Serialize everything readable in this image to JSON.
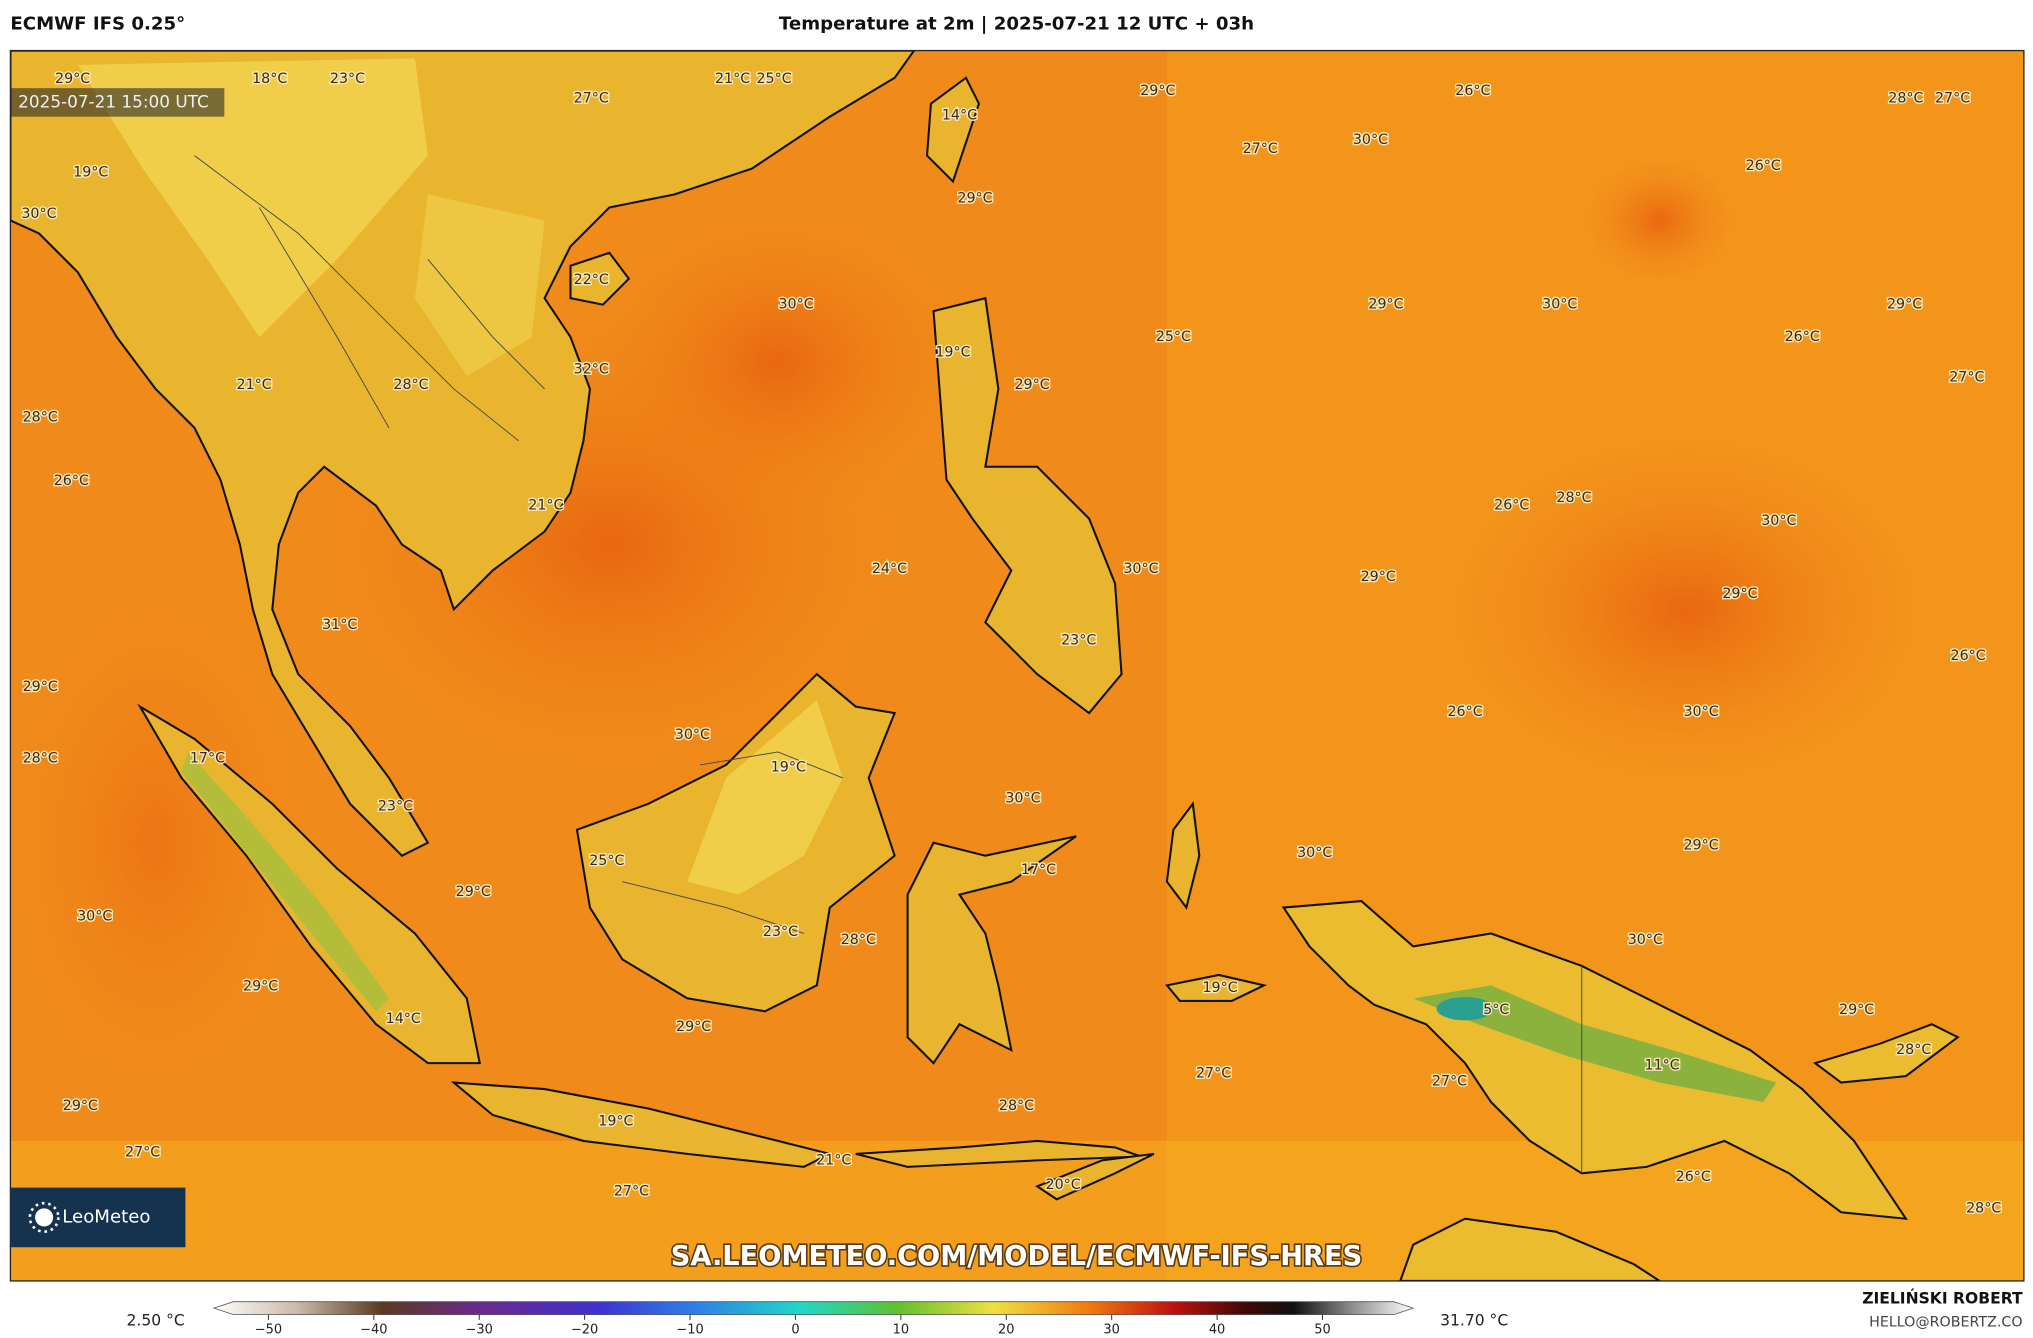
{
  "header": {
    "model": "ECMWF IFS 0.25°",
    "title": "Temperature at 2m | 2025-07-21 12 UTC + 03h"
  },
  "timestamp": "2025-07-21 15:00 UTC",
  "temperature_labels": [
    "29°C",
    "18°C",
    "23°C",
    "27°C",
    "21°C",
    "25°C",
    "19°C",
    "30°C",
    "14°C",
    "29°C",
    "26°C",
    "28°C",
    "27°C",
    "30°C",
    "27°C",
    "26°C",
    "29°C",
    "22°C",
    "30°C",
    "29°C",
    "30°C",
    "29°C",
    "25°C",
    "26°C",
    "19°C",
    "32°C",
    "27°C",
    "21°C",
    "28°C",
    "29°C",
    "28°C",
    "26°C",
    "21°C",
    "26°C",
    "28°C",
    "30°C",
    "24°C",
    "30°C",
    "29°C",
    "29°C",
    "31°C",
    "23°C",
    "26°C",
    "29°C",
    "26°C",
    "30°C",
    "30°C",
    "19°C",
    "17°C",
    "28°C",
    "30°C",
    "23°C",
    "30°C",
    "29°C",
    "25°C",
    "17°C",
    "29°C",
    "30°C",
    "23°C",
    "28°C",
    "30°C",
    "19°C",
    "5°C",
    "29°C",
    "29°C",
    "14°C",
    "29°C",
    "28°C",
    "11°C",
    "27°C",
    "27°C",
    "28°C",
    "29°C",
    "19°C",
    "27°C",
    "21°C",
    "20°C",
    "26°C",
    "27°C",
    "28°C"
  ],
  "watermark": "SA.LEOMETEO.COM/MODEL/ECMWF-IFS-HRES",
  "logo": "LeoMeteo",
  "colorbar": {
    "min_label": "2.50 °C",
    "max_label": "31.70 °C",
    "ticks": [
      {
        "value": -50,
        "label": "−50"
      },
      {
        "value": -40,
        "label": "−40"
      },
      {
        "value": -30,
        "label": "−30"
      },
      {
        "value": -20,
        "label": "−20"
      },
      {
        "value": -10,
        "label": "−10"
      },
      0,
      10,
      20,
      30,
      40,
      50
    ]
  },
  "credit": {
    "author": "ZIELIŃSKI ROBERT",
    "email": "HELLO@ROBERTZ.CO"
  }
}
